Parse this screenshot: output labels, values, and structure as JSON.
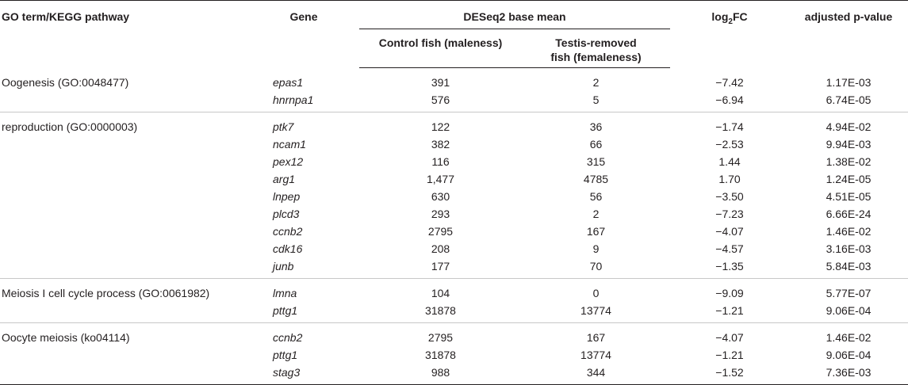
{
  "header": {
    "term": "GO term/KEGG pathway",
    "gene": "Gene",
    "deseq": "DESeq2 base mean",
    "control": "Control fish (maleness)",
    "testis_line1": "Testis-removed",
    "testis_line2": "fish (femaleness)",
    "fc_main": "log",
    "fc_sub": "2",
    "fc_tail": "FC",
    "padj": "adjusted p-value"
  },
  "groups": [
    {
      "term": "Oogenesis (GO:0048477)",
      "rows": [
        {
          "gene": "epas1",
          "control": "391",
          "testis": "2",
          "fc": "−7.42",
          "padj": "1.17E-03"
        },
        {
          "gene": "hnrnpa1",
          "control": "576",
          "testis": "5",
          "fc": "−6.94",
          "padj": "6.74E-05"
        }
      ]
    },
    {
      "term": "reproduction (GO:0000003)",
      "rows": [
        {
          "gene": "ptk7",
          "control": "122",
          "testis": "36",
          "fc": "−1.74",
          "padj": "4.94E-02"
        },
        {
          "gene": "ncam1",
          "control": "382",
          "testis": "66",
          "fc": "−2.53",
          "padj": "9.94E-03"
        },
        {
          "gene": "pex12",
          "control": "116",
          "testis": "315",
          "fc": "1.44",
          "padj": "1.38E-02"
        },
        {
          "gene": "arg1",
          "control": "1,477",
          "testis": "4785",
          "fc": "1.70",
          "padj": "1.24E-05"
        },
        {
          "gene": "lnpep",
          "control": "630",
          "testis": "56",
          "fc": "−3.50",
          "padj": "4.51E-05"
        },
        {
          "gene": "plcd3",
          "control": "293",
          "testis": "2",
          "fc": "−7.23",
          "padj": "6.66E-24"
        },
        {
          "gene": "ccnb2",
          "control": "2795",
          "testis": "167",
          "fc": "−4.07",
          "padj": "1.46E-02"
        },
        {
          "gene": "cdk16",
          "control": "208",
          "testis": "9",
          "fc": "−4.57",
          "padj": "3.16E-03"
        },
        {
          "gene": "junb",
          "control": "177",
          "testis": "70",
          "fc": "−1.35",
          "padj": "5.84E-03"
        }
      ]
    },
    {
      "term": "Meiosis I cell cycle process (GO:0061982)",
      "rows": [
        {
          "gene": "lmna",
          "control": "104",
          "testis": "0",
          "fc": "−9.09",
          "padj": "5.77E-07"
        },
        {
          "gene": "pttg1",
          "control": "31878",
          "testis": "13774",
          "fc": "−1.21",
          "padj": "9.06E-04"
        }
      ]
    },
    {
      "term": "Oocyte meiosis (ko04114)",
      "rows": [
        {
          "gene": "ccnb2",
          "control": "2795",
          "testis": "167",
          "fc": "−4.07",
          "padj": "1.46E-02"
        },
        {
          "gene": "pttg1",
          "control": "31878",
          "testis": "13774",
          "fc": "−1.21",
          "padj": "9.06E-04"
        },
        {
          "gene": "stag3",
          "control": "988",
          "testis": "344",
          "fc": "−1.52",
          "padj": "7.36E-03"
        }
      ]
    }
  ]
}
